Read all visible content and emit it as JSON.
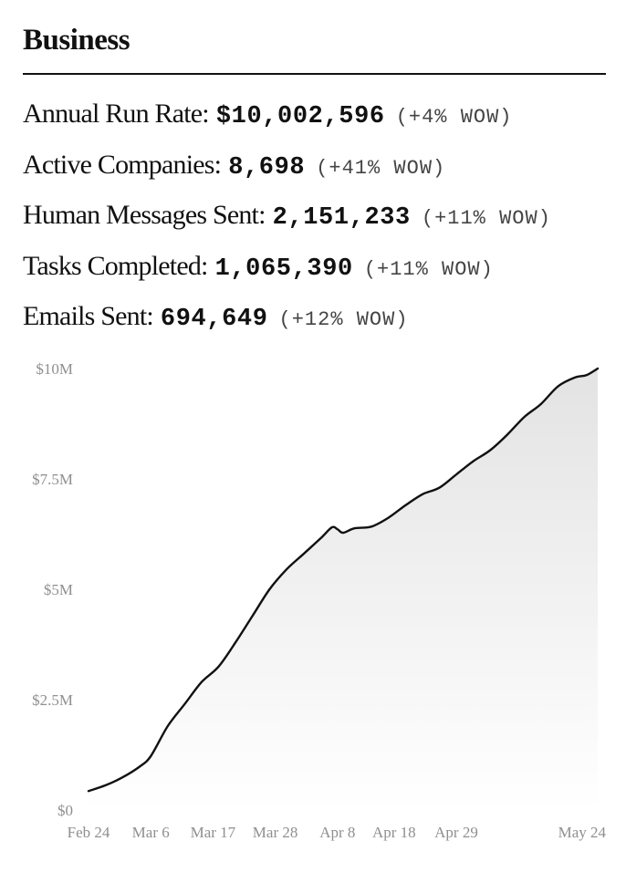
{
  "header": {
    "title": "Business"
  },
  "metrics": [
    {
      "label": "Annual Run Rate:",
      "value": "$10,002,596",
      "change": "(+4% WOW)"
    },
    {
      "label": "Active Companies:",
      "value": "8,698",
      "change": "(+41% WOW)"
    },
    {
      "label": "Human Messages Sent:",
      "value": "2,151,233",
      "change": "(+11% WOW)"
    },
    {
      "label": "Tasks Completed:",
      "value": "1,065,390",
      "change": "(+11% WOW)"
    },
    {
      "label": "Emails Sent:",
      "value": "694,649",
      "change": "(+12% WOW)"
    }
  ],
  "chart_data": {
    "type": "area",
    "title": "",
    "xlabel": "",
    "ylabel": "",
    "x_range": [
      "2024-02-24",
      "2024-05-24"
    ],
    "ylim": [
      0,
      10000000
    ],
    "yticks": [
      {
        "value": 0,
        "label": "$0"
      },
      {
        "value": 2500000,
        "label": "$2.5M"
      },
      {
        "value": 5000000,
        "label": "$5M"
      },
      {
        "value": 7500000,
        "label": "$7.5M"
      },
      {
        "value": 10000000,
        "label": "$10M"
      }
    ],
    "xticks": [
      {
        "date": "2024-02-24",
        "label": "Feb 24"
      },
      {
        "date": "2024-03-06",
        "label": "Mar 6"
      },
      {
        "date": "2024-03-17",
        "label": "Mar 17"
      },
      {
        "date": "2024-03-28",
        "label": "Mar 28"
      },
      {
        "date": "2024-04-08",
        "label": "Apr 8"
      },
      {
        "date": "2024-04-18",
        "label": "Apr 18"
      },
      {
        "date": "2024-04-29",
        "label": "Apr 29"
      },
      {
        "date": "2024-05-24",
        "label": "May 24"
      }
    ],
    "grid": false,
    "legend": "none",
    "series": [
      {
        "points": [
          {
            "x": "2024-02-24",
            "y": 430000
          },
          {
            "x": "2024-02-27",
            "y": 560000
          },
          {
            "x": "2024-03-01",
            "y": 740000
          },
          {
            "x": "2024-03-04",
            "y": 980000
          },
          {
            "x": "2024-03-06",
            "y": 1220000
          },
          {
            "x": "2024-03-09",
            "y": 1900000
          },
          {
            "x": "2024-03-12",
            "y": 2400000
          },
          {
            "x": "2024-03-15",
            "y": 2900000
          },
          {
            "x": "2024-03-18",
            "y": 3250000
          },
          {
            "x": "2024-03-21",
            "y": 3800000
          },
          {
            "x": "2024-03-24",
            "y": 4400000
          },
          {
            "x": "2024-03-27",
            "y": 5000000
          },
          {
            "x": "2024-03-30",
            "y": 5450000
          },
          {
            "x": "2024-04-02",
            "y": 5800000
          },
          {
            "x": "2024-04-05",
            "y": 6150000
          },
          {
            "x": "2024-04-07",
            "y": 6400000
          },
          {
            "x": "2024-04-08",
            "y": 6360000
          },
          {
            "x": "2024-04-09",
            "y": 6280000
          },
          {
            "x": "2024-04-11",
            "y": 6380000
          },
          {
            "x": "2024-04-14",
            "y": 6420000
          },
          {
            "x": "2024-04-17",
            "y": 6620000
          },
          {
            "x": "2024-04-20",
            "y": 6900000
          },
          {
            "x": "2024-04-23",
            "y": 7150000
          },
          {
            "x": "2024-04-26",
            "y": 7300000
          },
          {
            "x": "2024-04-29",
            "y": 7600000
          },
          {
            "x": "2024-05-02",
            "y": 7900000
          },
          {
            "x": "2024-05-05",
            "y": 8150000
          },
          {
            "x": "2024-05-08",
            "y": 8500000
          },
          {
            "x": "2024-05-11",
            "y": 8900000
          },
          {
            "x": "2024-05-14",
            "y": 9200000
          },
          {
            "x": "2024-05-17",
            "y": 9600000
          },
          {
            "x": "2024-05-20",
            "y": 9800000
          },
          {
            "x": "2024-05-22",
            "y": 9850000
          },
          {
            "x": "2024-05-24",
            "y": 10000000
          }
        ]
      }
    ],
    "colors": {
      "line": "#111111",
      "fill_top": "#e3e3e3",
      "fill_bottom": "#ffffff",
      "tick_text": "#8f8f8f"
    }
  }
}
